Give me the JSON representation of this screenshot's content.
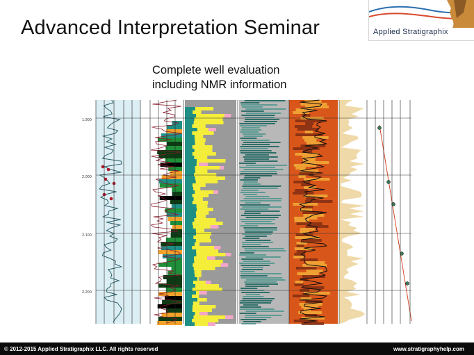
{
  "slide": {
    "title": "Advanced Interpretation Seminar",
    "subtitle_line1": "Complete well evaluation",
    "subtitle_line2": "including NMR information"
  },
  "logo": {
    "text": "Applied Stratigraphix",
    "colors": {
      "blue": "#2a6fb0",
      "red": "#d64a2c",
      "earth": "#c98a3a"
    }
  },
  "well_log": {
    "depth_labels": [
      "1.900",
      "2.000",
      "2.100",
      "2.200"
    ]
  },
  "colors": {
    "green": "#1f8f3a",
    "teal": "#1f8f86",
    "yellow": "#f4ee3a",
    "orange": "#f2a12a",
    "pink": "#f3a6c8",
    "deep_orange": "#d9561a",
    "cream": "#efd9a8",
    "light_blue": "#dbeef3"
  },
  "footer": {
    "copyright": "© 2012-2015 Applied Stratigraphix LLC. All rights reserved",
    "url": "www.stratigraphyhelp.com"
  }
}
